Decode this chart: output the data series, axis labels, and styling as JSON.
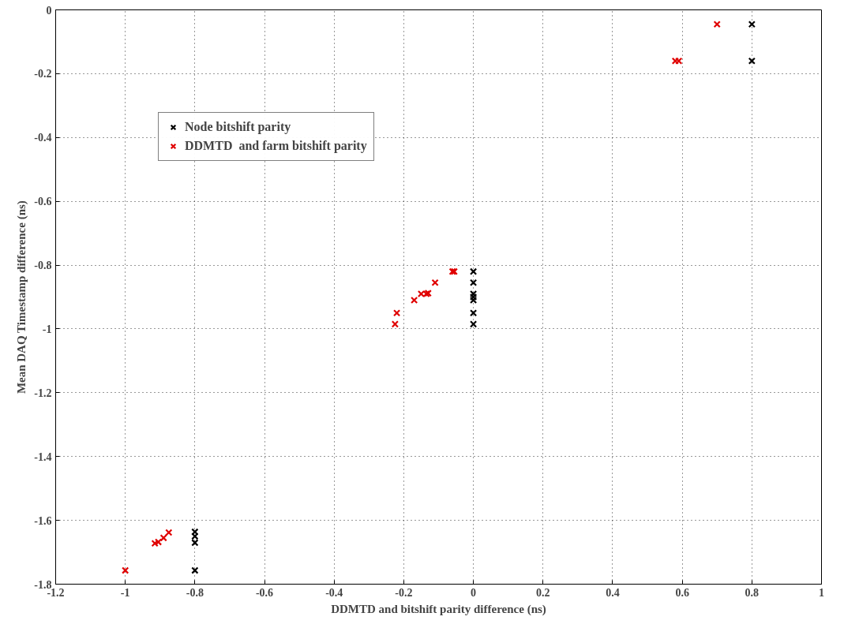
{
  "chart_data": {
    "type": "scatter",
    "xlabel": "DDMTD and bitshift parity difference (ns)",
    "ylabel": "Mean DAQ Timestamp difference (ns)",
    "xlim": [
      -1.2,
      1
    ],
    "ylim": [
      -1.8,
      0
    ],
    "xticks": [
      -1.2,
      -1,
      -0.8,
      -0.6,
      -0.4,
      -0.2,
      0,
      0.2,
      0.4,
      0.6,
      0.8,
      1
    ],
    "yticks": [
      -1.8,
      -1.6,
      -1.4,
      -1.2,
      -1,
      -0.8,
      -0.6,
      -0.4,
      -0.2,
      0
    ],
    "grid": true,
    "legend": "top left",
    "marker": "cross",
    "series": [
      {
        "name": "Node bitshift parity",
        "color": "#000000",
        "x": [
          -0.8,
          -0.8,
          -0.8,
          -0.8,
          0,
          0,
          0,
          0,
          0,
          0,
          0,
          0.8,
          0.8
        ],
        "values": [
          -1.636,
          -1.65,
          -1.67,
          -1.757,
          -0.82,
          -0.855,
          -0.89,
          -0.9,
          -0.91,
          -0.95,
          -0.985,
          -0.045,
          -0.16
        ]
      },
      {
        "name": "DDMTD  and farm bitshift parity",
        "color": "#e00000",
        "x": [
          -1,
          -0.915,
          -0.905,
          -0.89,
          -0.875,
          -0.225,
          -0.22,
          -0.17,
          -0.15,
          -0.135,
          -0.13,
          -0.11,
          -0.06,
          -0.055,
          0.58,
          0.59,
          0.7
        ],
        "values": [
          -1.757,
          -1.672,
          -1.668,
          -1.655,
          -1.638,
          -0.985,
          -0.95,
          -0.91,
          -0.89,
          -0.89,
          -0.888,
          -0.855,
          -0.82,
          -0.82,
          -0.16,
          -0.16,
          -0.045
        ]
      }
    ]
  }
}
